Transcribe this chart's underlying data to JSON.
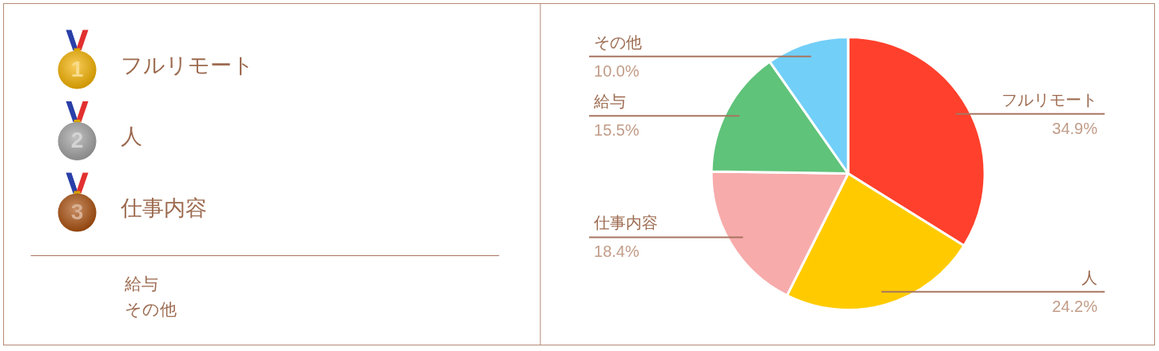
{
  "chart_data": [
    {
      "type": "other",
      "categories": [
        "フルリモート",
        "人",
        "仕事内容",
        "給与",
        "その他"
      ],
      "values": [
        1,
        2,
        3,
        null,
        null
      ],
      "value_labels": [
        "1",
        "2",
        "3",
        null,
        null
      ],
      "colors": [
        "#f2b100",
        "#a0a0a0",
        "#a9500f",
        null,
        null
      ]
    },
    {
      "type": "pie",
      "categories": [
        "フルリモート",
        "人",
        "仕事内容",
        "給与",
        "その他"
      ],
      "values": [
        34.9,
        24.2,
        18.4,
        15.5,
        10.0
      ],
      "colors": [
        "#ff402c",
        "#ffcb00",
        "#f7abab",
        "#5fc37a",
        "#72cff8"
      ],
      "value_labels": [
        "34.9%",
        "24.2%",
        "18.4%",
        "15.5%",
        "10.0%"
      ]
    }
  ]
}
